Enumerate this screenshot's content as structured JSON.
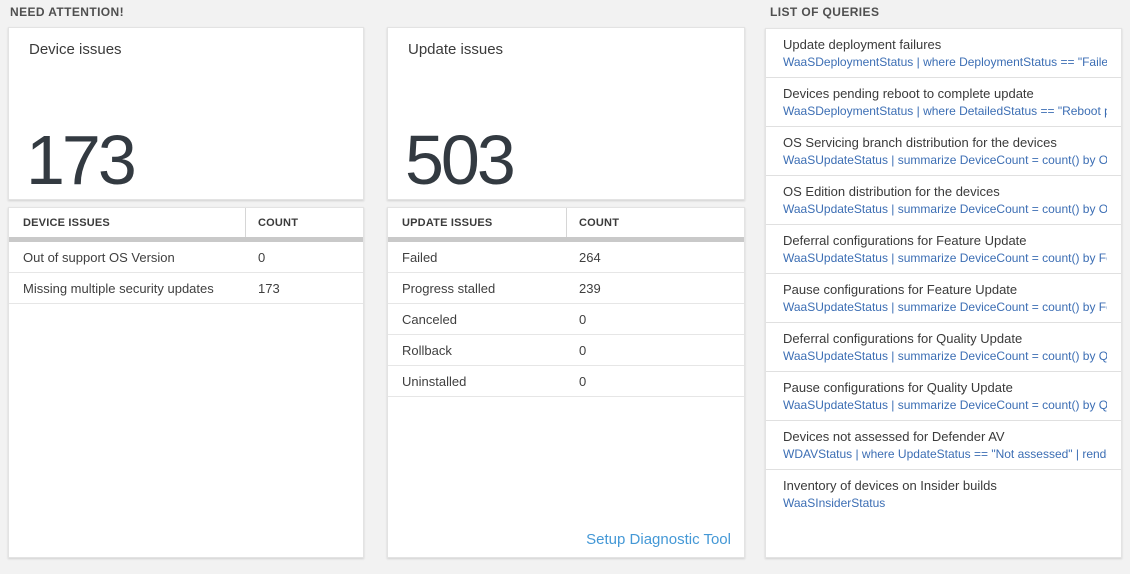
{
  "need_attention": {
    "header": "NEED ATTENTION!",
    "device_card": {
      "title": "Device issues",
      "count": "173"
    },
    "device_table": {
      "columns": [
        "DEVICE ISSUES",
        "COUNT"
      ],
      "rows": [
        {
          "issue": "Out of support OS Version",
          "count": "0"
        },
        {
          "issue": "Missing multiple security updates",
          "count": "173"
        }
      ]
    },
    "update_card": {
      "title": "Update issues",
      "count": "503"
    },
    "update_table": {
      "columns": [
        "UPDATE ISSUES",
        "COUNT"
      ],
      "rows": [
        {
          "issue": "Failed",
          "count": "264"
        },
        {
          "issue": "Progress stalled",
          "count": "239"
        },
        {
          "issue": "Canceled",
          "count": "0"
        },
        {
          "issue": "Rollback",
          "count": "0"
        },
        {
          "issue": "Uninstalled",
          "count": "0"
        }
      ]
    },
    "setup_link": "Setup Diagnostic Tool"
  },
  "queries": {
    "header": "LIST OF QUERIES",
    "items": [
      {
        "title": "Update deployment failures",
        "query": "WaaSDeploymentStatus | where DeploymentStatus == \"Failed\" |..."
      },
      {
        "title": "Devices pending reboot to complete update",
        "query": "WaaSDeploymentStatus | where DetailedStatus == \"Reboot pend..."
      },
      {
        "title": "OS Servicing branch distribution for the devices",
        "query": "WaaSUpdateStatus | summarize DeviceCount = count() by OSSer..."
      },
      {
        "title": "OS Edition distribution for the devices",
        "query": "WaaSUpdateStatus | summarize DeviceCount = count() by OSEdit..."
      },
      {
        "title": "Deferral configurations for Feature Update",
        "query": "WaaSUpdateStatus | summarize DeviceCount = count() by Featur..."
      },
      {
        "title": "Pause configurations for Feature Update",
        "query": "WaaSUpdateStatus | summarize DeviceCount = count() by Featur..."
      },
      {
        "title": "Deferral configurations for Quality Update",
        "query": "WaaSUpdateStatus | summarize DeviceCount = count() by Qualit..."
      },
      {
        "title": "Pause configurations for Quality Update",
        "query": "WaaSUpdateStatus | summarize DeviceCount = count() by Qualit..."
      },
      {
        "title": "Devices not assessed for Defender AV",
        "query": "WDAVStatus | where UpdateStatus == \"Not assessed\" | render ta..."
      },
      {
        "title": "Inventory of devices on Insider builds",
        "query": "WaaSInsiderStatus"
      }
    ]
  },
  "colors": {
    "page_bg": "#f2f2f2",
    "query_text_blue": "#3c6eb4",
    "setup_link_blue": "#4498d6",
    "big_number": "#333a41",
    "grid_bar_gray": "#c9c9c9"
  }
}
